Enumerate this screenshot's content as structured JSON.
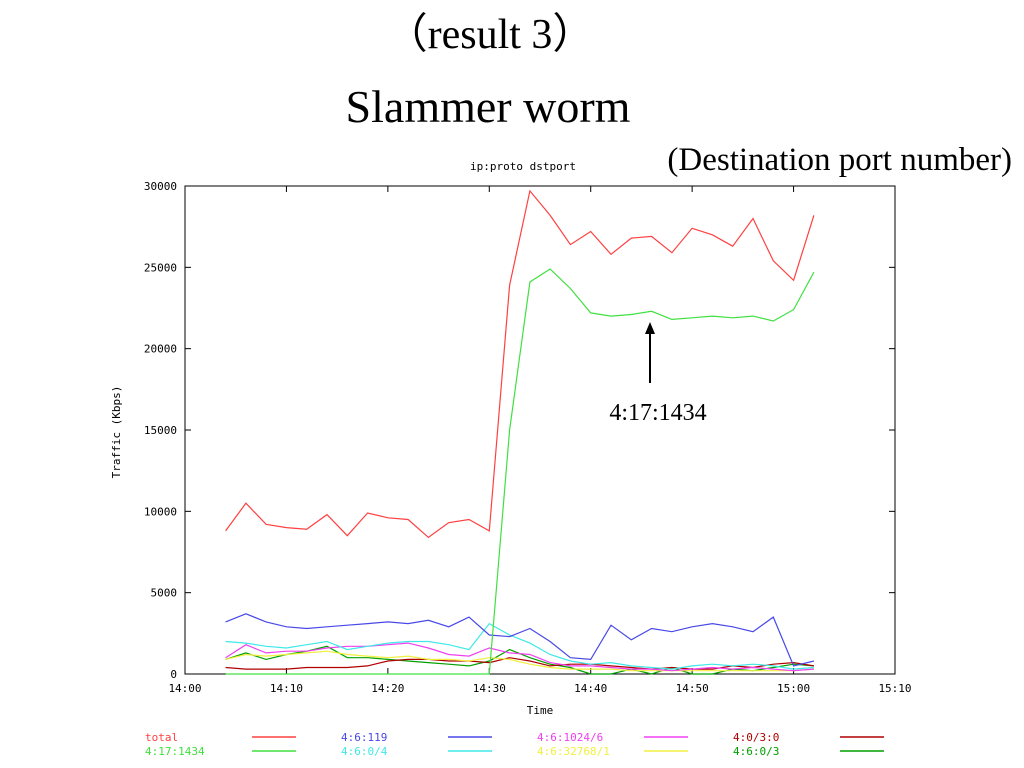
{
  "slide": {
    "title": "（result 3）",
    "subtitle": "Slammer worm",
    "note": "(Destination port number)"
  },
  "chart_data": {
    "type": "line",
    "title": "ip:proto dstport",
    "x_label": "Time",
    "y_label": "Traffic (Kbps)",
    "annotation": "4:17:1434",
    "x": [
      "14:04",
      "14:06",
      "14:08",
      "14:10",
      "14:12",
      "14:14",
      "14:16",
      "14:18",
      "14:20",
      "14:22",
      "14:24",
      "14:26",
      "14:28",
      "14:30",
      "14:32",
      "14:34",
      "14:36",
      "14:38",
      "14:40",
      "14:42",
      "14:44",
      "14:46",
      "14:48",
      "14:50",
      "14:52",
      "14:54",
      "14:56",
      "14:58",
      "15:00",
      "15:02"
    ],
    "xlim": [
      "14:00",
      "15:10"
    ],
    "xticks": [
      "14:00",
      "14:10",
      "14:20",
      "14:30",
      "14:40",
      "14:50",
      "15:00",
      "15:10"
    ],
    "ylim": [
      0,
      30000
    ],
    "yticks": [
      0,
      5000,
      10000,
      15000,
      20000,
      25000,
      30000
    ],
    "grid": false,
    "series": [
      {
        "name": "total",
        "color": "#ff4040",
        "values": [
          8800,
          10500,
          9200,
          9000,
          8900,
          9800,
          8500,
          9900,
          9600,
          9500,
          8400,
          9300,
          9500,
          8800,
          23900,
          29700,
          28200,
          26400,
          27200,
          25800,
          26800,
          26900,
          25900,
          27400,
          27000,
          26300,
          28000,
          25400,
          24200,
          28200
        ]
      },
      {
        "name": "4:17:1434",
        "color": "#40e040",
        "values": [
          0,
          0,
          0,
          0,
          0,
          0,
          0,
          0,
          0,
          0,
          0,
          0,
          0,
          0,
          15000,
          24100,
          24900,
          23700,
          22200,
          22000,
          22100,
          22300,
          21800,
          21900,
          22000,
          21900,
          22000,
          21700,
          22400,
          24700
        ]
      },
      {
        "name": "4:6:119",
        "color": "#4848e8",
        "values": [
          3200,
          3700,
          3200,
          2900,
          2800,
          2900,
          3000,
          3100,
          3200,
          3100,
          3300,
          2900,
          3500,
          2400,
          2300,
          2800,
          2000,
          1000,
          900,
          3000,
          2100,
          2800,
          2600,
          2900,
          3100,
          2900,
          2600,
          3500,
          500,
          800
        ]
      },
      {
        "name": "4:6:0/4",
        "color": "#40e8e8",
        "values": [
          2000,
          1900,
          1700,
          1600,
          1800,
          2000,
          1500,
          1700,
          1900,
          2000,
          2000,
          1800,
          1500,
          3100,
          2400,
          1900,
          1200,
          800,
          600,
          700,
          500,
          400,
          300,
          500,
          600,
          500,
          600,
          500,
          300,
          400
        ]
      },
      {
        "name": "4:6:1024/6",
        "color": "#f040f0",
        "values": [
          1000,
          1800,
          1300,
          1400,
          1400,
          1600,
          1700,
          1700,
          1800,
          1900,
          1600,
          1200,
          1100,
          1600,
          1300,
          1200,
          700,
          500,
          500,
          400,
          300,
          300,
          200,
          300,
          400,
          300,
          400,
          300,
          200,
          300
        ]
      },
      {
        "name": "4:6:32768/1",
        "color": "#f0f040",
        "values": [
          900,
          1200,
          1100,
          1200,
          1300,
          1400,
          1200,
          1100,
          1000,
          1100,
          900,
          900,
          800,
          1000,
          900,
          600,
          400,
          300,
          300,
          300,
          200,
          200,
          200,
          200,
          200,
          200,
          200,
          200,
          200,
          300
        ]
      },
      {
        "name": "4:0/3:0",
        "color": "#b00000",
        "values": [
          400,
          300,
          300,
          300,
          400,
          400,
          400,
          500,
          800,
          900,
          900,
          800,
          800,
          700,
          1000,
          800,
          500,
          600,
          600,
          500,
          400,
          300,
          400,
          300,
          300,
          500,
          400,
          600,
          700,
          500
        ]
      },
      {
        "name": "4:6:0/3",
        "color": "#00a000",
        "values": [
          900,
          1300,
          900,
          1200,
          1400,
          1700,
          1000,
          1000,
          900,
          800,
          700,
          600,
          500,
          800,
          1500,
          1000,
          600,
          400,
          0,
          0,
          300,
          0,
          400,
          0,
          0,
          300,
          200,
          400,
          600,
          500
        ]
      }
    ]
  }
}
